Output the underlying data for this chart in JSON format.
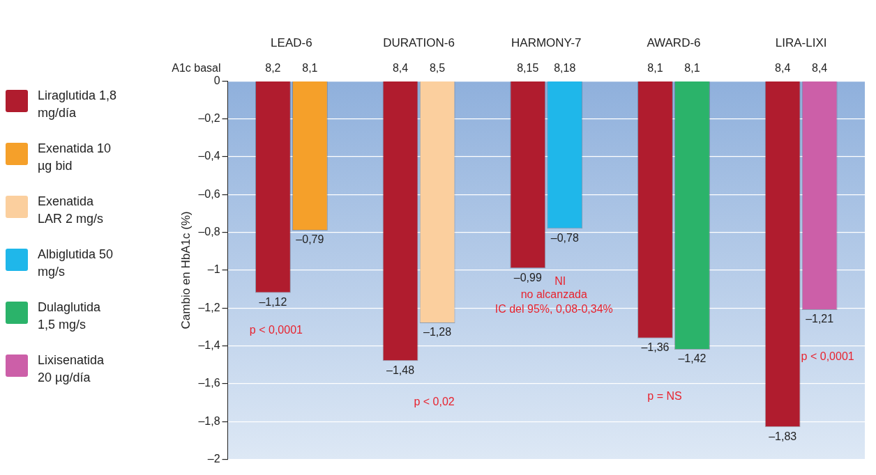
{
  "chart_data": {
    "type": "bar",
    "categories": [
      "LEAD-6",
      "DURATION-6",
      "HARMONY-7",
      "AWARD-6",
      "LIRA-LIXI"
    ],
    "ylabel": "Cambio en HbA1c (%)",
    "ylim": [
      -2,
      0
    ],
    "yticks": [
      0,
      {
        "value": -0.2,
        "label": "–0,2"
      },
      {
        "value": -0.4,
        "label": "–0,4"
      },
      {
        "value": -0.6,
        "label": "–0,6"
      },
      {
        "value": -0.8,
        "label": "–0,8"
      },
      {
        "value": -1,
        "label": "–1"
      },
      {
        "value": -1.2,
        "label": "–1,2"
      },
      {
        "value": -1.4,
        "label": "–1,4"
      },
      {
        "value": -1.6,
        "label": "–1,6"
      },
      {
        "value": -1.8,
        "label": "–1,8"
      },
      {
        "value": -2,
        "label": "–2"
      }
    ],
    "grid": "y",
    "legend": "left",
    "series": [
      {
        "name": "Liraglutida 1,8 mg/día",
        "color": "#b01c2e",
        "values": [
          -1.12,
          -1.48,
          -0.99,
          -1.36,
          -1.83
        ],
        "value_labels": [
          "–1,12",
          "–1,48",
          "–0,99",
          "–1,36",
          "–1,83"
        ]
      },
      {
        "name": "Exenatida 10 µg bid",
        "color": "#f5a02a",
        "values": [
          -0.79,
          null,
          null,
          null,
          null
        ],
        "value_labels": [
          "–0,79",
          null,
          null,
          null,
          null
        ]
      },
      {
        "name": "Exenatida LAR 2 mg/s",
        "color": "#fbcf9e",
        "values": [
          null,
          -1.28,
          null,
          null,
          null
        ],
        "value_labels": [
          null,
          "–1,28",
          null,
          null,
          null
        ]
      },
      {
        "name": "Albiglutida 50 mg/s",
        "color": "#1fb7ea",
        "values": [
          null,
          null,
          -0.78,
          null,
          null
        ],
        "value_labels": [
          null,
          null,
          "–0,78",
          null,
          null
        ]
      },
      {
        "name": "Dulaglutida 1,5 mg/s",
        "color": "#2bb36a",
        "values": [
          null,
          null,
          null,
          -1.42,
          null
        ],
        "value_labels": [
          null,
          null,
          null,
          "–1,42",
          null
        ]
      },
      {
        "name": "Lixisenatida 20 µg/día",
        "color": "#cc5fa8",
        "values": [
          null,
          null,
          null,
          null,
          -1.21
        ],
        "value_labels": [
          null,
          null,
          null,
          null,
          "–1,21"
        ]
      }
    ],
    "annotations": [
      "A1c basal",
      "8,2",
      "8,1",
      "8,4",
      "8,5",
      "8,15",
      "8,18",
      "8,1",
      "8,1",
      "8,4",
      "8,4",
      "p < 0,0001",
      "p < 0,02",
      "NI",
      "no alcanzada",
      "IC del 95%, 0,08-0,34%",
      "p = NS",
      "p < 0,0001"
    ]
  }
}
